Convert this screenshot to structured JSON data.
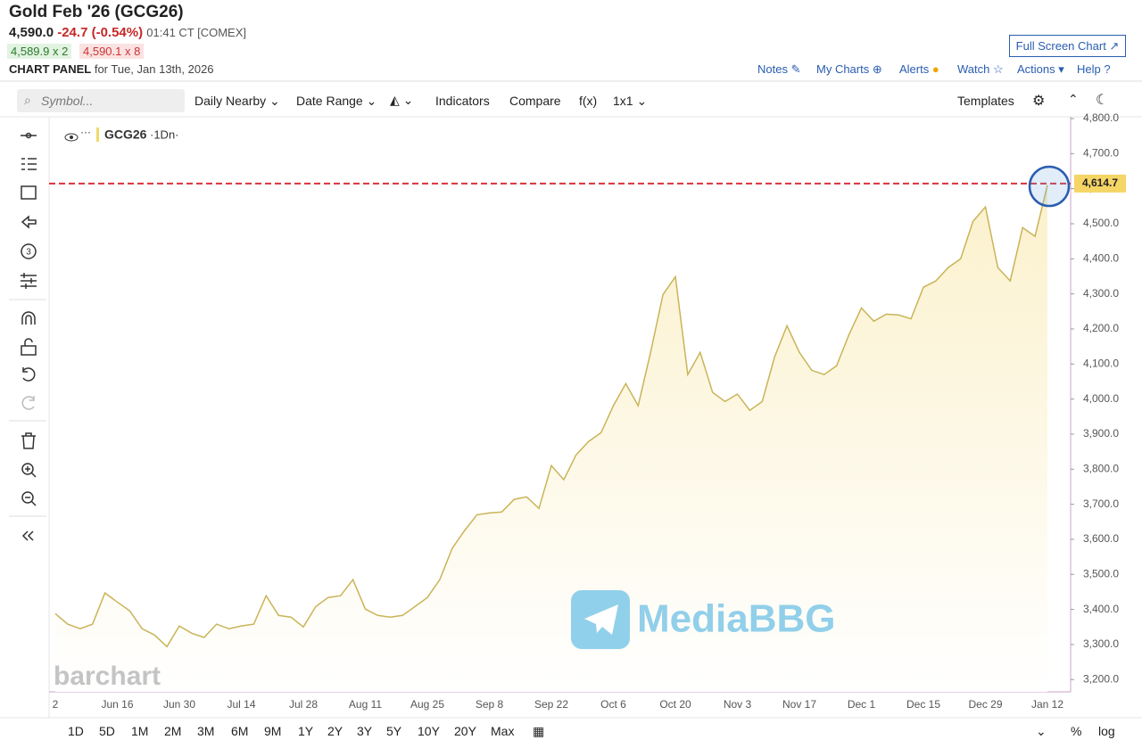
{
  "header": {
    "title": "Gold Feb '26 (GCG26)",
    "last": "4,590.0",
    "change": "-24.7 (-0.54%)",
    "time": "01:41 CT [COMEX]",
    "bid": "4,589.9 x 2",
    "ask": "4,590.1 x 8",
    "panel": "CHART PANEL",
    "panel_date": "for Tue, Jan 13th, 2026",
    "fullscreen": "Full Screen Chart",
    "nav": [
      "Notes",
      "My Charts",
      "Alerts",
      "Watch",
      "Actions",
      "Help"
    ]
  },
  "toolbar": {
    "search": "Symbol...",
    "items": [
      "Daily Nearby",
      "Date Range",
      "Indicators",
      "Compare",
      "f(x)",
      "1x1"
    ],
    "templates": "Templates",
    "tool_badge": "3"
  },
  "chart_data": {
    "type": "area",
    "series": [
      {
        "name": "GCG26",
        "color": "#c9b458",
        "fill": "#fbf1cc",
        "values": [
          3388,
          3358,
          3345,
          3358,
          3447,
          3421,
          3396,
          3345,
          3327,
          3294,
          3353,
          3332,
          3320,
          3358,
          3345,
          3353,
          3358,
          3439,
          3383,
          3378,
          3350,
          3408,
          3434,
          3439,
          3485,
          3401,
          3383,
          3378,
          3383,
          3408,
          3434,
          3485,
          3574,
          3625,
          3670,
          3675,
          3678,
          3714,
          3721,
          3688,
          3810,
          3770,
          3841,
          3879,
          3904,
          3981,
          4044,
          3981,
          4133,
          4298,
          4349,
          4070,
          4133,
          4019,
          3993,
          4014,
          3968,
          3993,
          4120,
          4209,
          4133,
          4082,
          4070,
          4095,
          4184,
          4260,
          4222,
          4242,
          4240,
          4229,
          4319,
          4337,
          4375,
          4400,
          4507,
          4548,
          4375,
          4337,
          4489,
          4464,
          4610
        ]
      }
    ],
    "interval_label": "·1Dn·",
    "categories": [
      "2",
      null,
      null,
      null,
      null,
      "Jun 16",
      null,
      null,
      null,
      null,
      "Jun 30",
      null,
      null,
      null,
      null,
      "Jul 14",
      null,
      null,
      null,
      null,
      "Jul 28",
      null,
      null,
      null,
      null,
      "Aug 11",
      null,
      null,
      null,
      null,
      "Aug 25",
      null,
      null,
      null,
      null,
      "Sep 8",
      null,
      null,
      null,
      null,
      "Sep 22",
      null,
      null,
      null,
      null,
      "Oct 6",
      null,
      null,
      null,
      null,
      "Oct 20",
      null,
      null,
      null,
      null,
      "Nov 3",
      null,
      null,
      null,
      null,
      "Nov 17",
      null,
      null,
      null,
      null,
      "Dec 1",
      null,
      null,
      null,
      null,
      "Dec 15",
      null,
      null,
      null,
      null,
      "Dec 29",
      null,
      null,
      null,
      null,
      "Jan 12"
    ],
    "ylim": [
      3165,
      4800
    ],
    "yticks": [
      {
        "value": 3200,
        "label": "3,200.0"
      },
      {
        "value": 3300,
        "label": "3,300.0"
      },
      {
        "value": 3400,
        "label": "3,400.0"
      },
      {
        "value": 3500,
        "label": "3,500.0"
      },
      {
        "value": 3600,
        "label": "3,600.0"
      },
      {
        "value": 3700,
        "label": "3,700.0"
      },
      {
        "value": 3800,
        "label": "3,800.0"
      },
      {
        "value": 3900,
        "label": "3,900.0"
      },
      {
        "value": 4000,
        "label": "4,000.0"
      },
      {
        "value": 4100,
        "label": "4,100.0"
      },
      {
        "value": 4200,
        "label": "4,200.0"
      },
      {
        "value": 4300,
        "label": "4,300.0"
      },
      {
        "value": 4400,
        "label": "4,400.0"
      },
      {
        "value": 4500,
        "label": "4,500.0"
      },
      {
        "value": 4600,
        "label": "4,600.0"
      },
      {
        "value": 4700,
        "label": "4,700.0"
      },
      {
        "value": 4800,
        "label": "4,800.0"
      }
    ],
    "grid": false,
    "price_line": {
      "value": 4614.7,
      "label": "4,614.7",
      "color": "#d9323b"
    }
  },
  "footer": {
    "periods": [
      "1D",
      "5D",
      "1M",
      "2M",
      "3M",
      "6M",
      "9M",
      "1Y",
      "2Y",
      "3Y",
      "5Y",
      "10Y",
      "20Y",
      "Max"
    ],
    "percent": "%",
    "log": "log"
  },
  "watermarks": {
    "brand": "barchart",
    "overlay": "MediaBBG"
  }
}
